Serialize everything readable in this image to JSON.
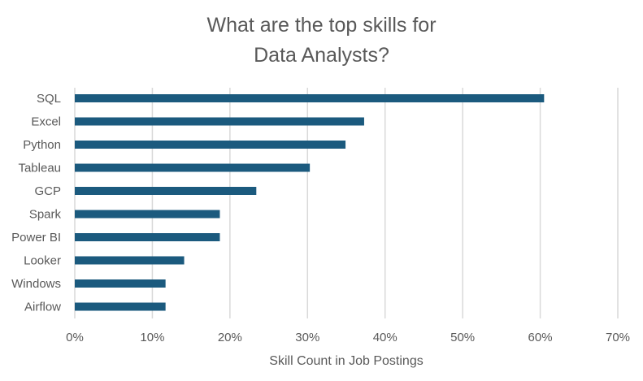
{
  "chart_data": {
    "type": "bar",
    "orientation": "horizontal",
    "title_lines": [
      "What are the top skills for",
      "Data Analysts?"
    ],
    "xlabel": "Skill Count in Job Postings",
    "ylabel": "",
    "categories": [
      "SQL",
      "Excel",
      "Python",
      "Tableau",
      "GCP",
      "Spark",
      "Power BI",
      "Looker",
      "Windows",
      "Airflow"
    ],
    "values": [
      60.5,
      37.3,
      34.9,
      30.3,
      23.4,
      18.7,
      18.7,
      14.1,
      11.7,
      11.7
    ],
    "value_unit": "%",
    "xlim": [
      0,
      70
    ],
    "xticks": [
      "0%",
      "10%",
      "20%",
      "30%",
      "40%",
      "50%",
      "60%",
      "70%"
    ],
    "grid": true,
    "legend": "none",
    "colors": {
      "bar": "#1b5a7e",
      "grid": "#d9d9d9",
      "text": "#595959"
    }
  }
}
